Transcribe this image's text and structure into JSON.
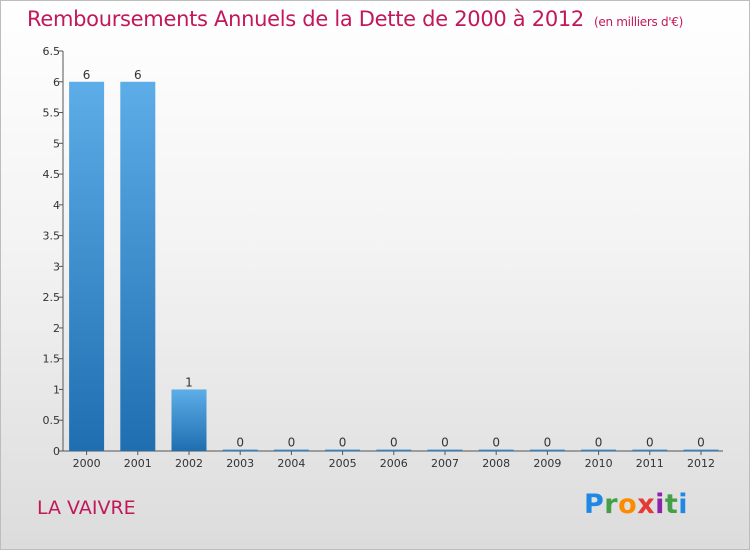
{
  "header": {
    "title": "Remboursements Annuels de la Dette de 2000 à 2012",
    "unit": "(en milliers d'€)"
  },
  "commune": "LA VAIVRE",
  "logo": {
    "text": "Proxiti",
    "colors": [
      "#1e88e5",
      "#43a047",
      "#fb8c00",
      "#e53935",
      "#8e24aa",
      "#fdd835"
    ]
  },
  "chart_data": {
    "type": "bar",
    "categories": [
      "2000",
      "2001",
      "2002",
      "2003",
      "2004",
      "2005",
      "2006",
      "2007",
      "2008",
      "2009",
      "2010",
      "2011",
      "2012"
    ],
    "values": [
      6,
      6,
      1,
      0,
      0,
      0,
      0,
      0,
      0,
      0,
      0,
      0,
      0
    ],
    "data_labels": [
      "6",
      "6",
      "1",
      "0",
      "0",
      "0",
      "0",
      "0",
      "0",
      "0",
      "0",
      "0",
      "0"
    ],
    "y_ticks": [
      "0",
      "0.5",
      "1",
      "1.5",
      "2",
      "2.5",
      "3",
      "3.5",
      "4",
      "4.5",
      "5",
      "5.5",
      "6",
      "6.5"
    ],
    "ylim": [
      0,
      6.5
    ],
    "grid": false,
    "colors": {
      "bar_top": "#5dade8",
      "bar_bottom": "#1f6eb0",
      "axis": "#555555",
      "text": "#333333"
    }
  }
}
